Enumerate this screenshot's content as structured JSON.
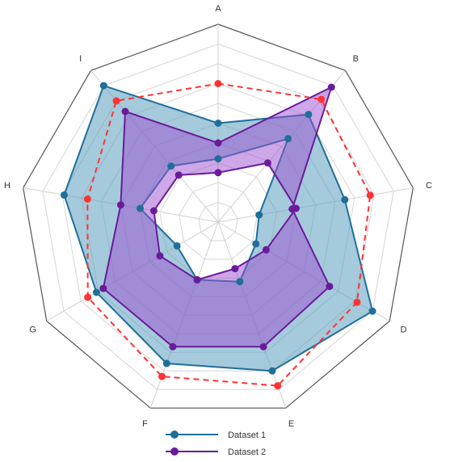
{
  "chart_data": {
    "type": "radar",
    "categories": [
      "A",
      "B",
      "C",
      "D",
      "E",
      "F",
      "G",
      "H",
      "I"
    ],
    "rmax": 10,
    "rings": 10,
    "series_datasets": [
      {
        "name": "Dataset 1",
        "inner": [
          3.2,
          5.5,
          2.1,
          2.2,
          3.2,
          3.1,
          2.4,
          4.0,
          3.7
        ],
        "outer": [
          5.0,
          7.1,
          6.5,
          9.0,
          8.0,
          7.6,
          7.1,
          7.9,
          9.0
        ],
        "color": "#1f6f9a",
        "fill": "#5b9fbf",
        "fill_opacity": 0.55
      },
      {
        "name": "Dataset 2",
        "inner": [
          2.5,
          3.9,
          4.0,
          2.8,
          2.5,
          3.1,
          3.4,
          3.3,
          3.1
        ],
        "outer": [
          4.0,
          8.9,
          3.8,
          6.5,
          6.7,
          6.7,
          6.7,
          5.0,
          7.3
        ],
        "color": "#6a1b9a",
        "fill": "#9b4fcf",
        "fill_opacity": 0.5
      }
    ],
    "reference": {
      "values": [
        7.0,
        8.1,
        7.8,
        8.1,
        8.8,
        8.3,
        7.6,
        6.7,
        8.0
      ],
      "color": "#ff3333"
    },
    "legend_position": "bottom",
    "grid": true
  }
}
